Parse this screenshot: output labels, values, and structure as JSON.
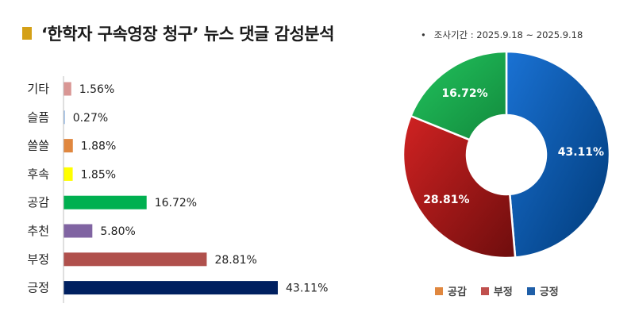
{
  "header": {
    "title": "‘한학자 구속영장 청구’ 뉴스 댓글 감성분석",
    "period_label": "조사기간 : 2025.9.18 ~ 2025.9.18"
  },
  "chart_data": [
    {
      "type": "bar",
      "orientation": "horizontal",
      "categories": [
        "기타",
        "슬픔",
        "쓸쓸",
        "후속",
        "공감",
        "추천",
        "부정",
        "긍정"
      ],
      "values": [
        1.56,
        0.27,
        1.88,
        1.85,
        16.72,
        5.8,
        28.81,
        43.11
      ],
      "value_labels": [
        "1.56%",
        "0.27%",
        "1.88%",
        "1.85%",
        "16.72%",
        "5.80%",
        "28.81%",
        "43.11%"
      ],
      "colors": [
        "#d99694",
        "#8eb4e3",
        "#e0873f",
        "#ffff00",
        "#00b050",
        "#8064a2",
        "#b0504c",
        "#002060"
      ],
      "xlim": [
        0,
        45
      ]
    },
    {
      "type": "pie",
      "style": "donut",
      "categories": [
        "긍정",
        "부정",
        "공감"
      ],
      "values": [
        43.11,
        28.81,
        16.72
      ],
      "value_labels": [
        "43.11%",
        "28.81%",
        "16.72%"
      ],
      "colors": [
        "#0b5cad",
        "#b01c1c",
        "#1fae54"
      ],
      "legend": {
        "position": "bottom",
        "items": [
          {
            "label": "공감",
            "color": "#e0873f"
          },
          {
            "label": "부정",
            "color": "#c0504d"
          },
          {
            "label": "긍정",
            "color": "#1f5fa8"
          }
        ]
      }
    }
  ]
}
